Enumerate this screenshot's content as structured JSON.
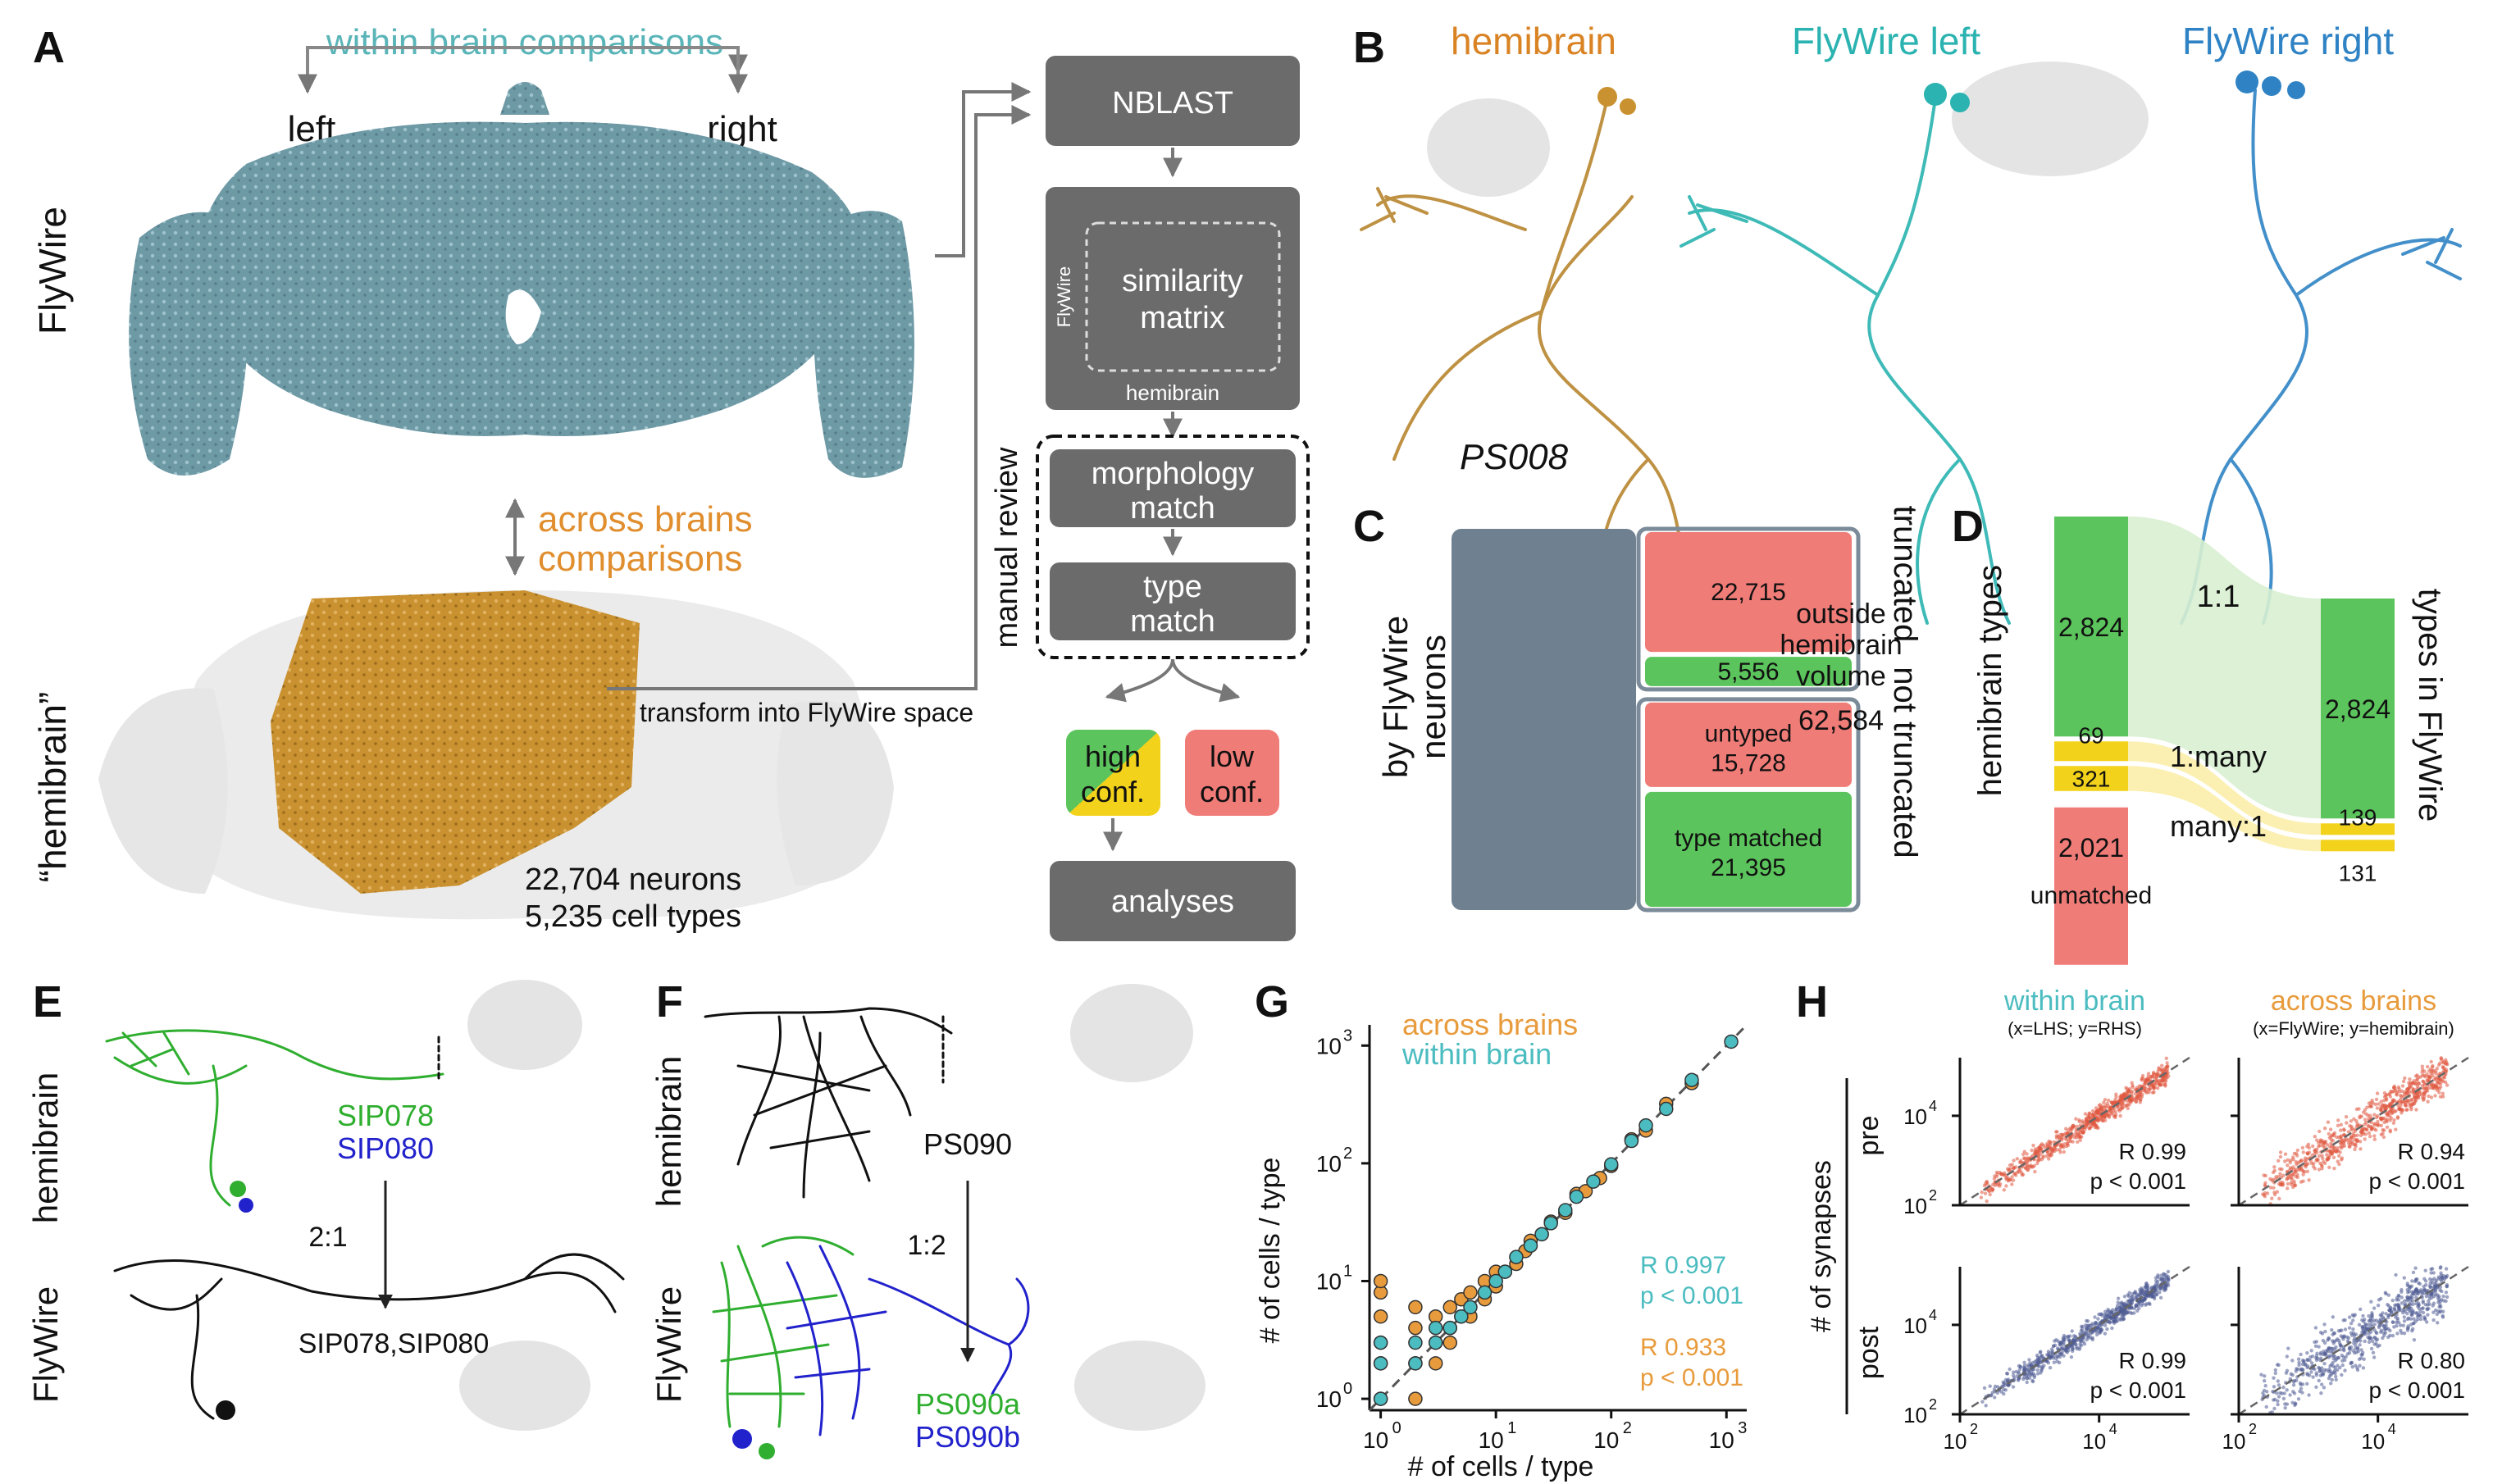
{
  "panels": {
    "A": "A",
    "B": "B",
    "C": "C",
    "D": "D",
    "E": "E",
    "F": "F",
    "G": "G",
    "H": "H"
  },
  "panel_a": {
    "within": "within brain comparisons",
    "left": "left",
    "right": "right",
    "flywire": "FlyWire",
    "across_1": "across brains",
    "across_2": "comparisons",
    "hemibrain": "“hemibrain”",
    "transform": "transform into FlyWire space",
    "neurons": "22,704 neurons",
    "cell_types": "5,235 cell types",
    "nblast": "NBLAST",
    "sim_1": "similarity",
    "sim_2": "matrix",
    "sim_flywire": "FlyWire",
    "sim_hemibrain": "hemibrain",
    "manual_review": "manual review",
    "morph_1": "morphology",
    "morph_2": "match",
    "type_1": "type",
    "type_2": "match",
    "high_1": "high",
    "high_2": "conf.",
    "low_1": "low",
    "low_2": "conf.",
    "analyses": "analyses",
    "colors": {
      "flywire_brain": "#6e9aa6",
      "hemibrain_brain": "#c9912f",
      "flow_box": "#6b6b6b",
      "high": "#5cc45c",
      "high_yellow": "#f2d21b",
      "low": "#f07c78"
    }
  },
  "panel_b": {
    "hemibrain": "hemibrain",
    "flywire_left": "FlyWire left",
    "flywire_right": "FlyWire right",
    "neuron": "PS008",
    "colors": {
      "hemibrain": "#d98324",
      "flywire_left": "#2ab3b0",
      "flywire_right": "#2f83c4"
    }
  },
  "panel_c": {
    "ylabel_1": "by FlyWire",
    "ylabel_2": "neurons",
    "outside_1": "outside",
    "outside_2": "hemibrain",
    "outside_3": "volume",
    "outside_value": "62,584",
    "truncated": "truncated",
    "not_truncated": "not truncated",
    "untyped_label": "untyped",
    "type_matched_label": "type matched",
    "colors": {
      "outside": "#6f8191",
      "red": "#f07c78",
      "green": "#5cc45c",
      "border": "#7b8b99"
    }
  },
  "chart_c": {
    "type": "bar",
    "categories": [
      "outside hemibrain volume",
      "truncated (red)",
      "truncated (green)",
      "untyped",
      "type matched"
    ],
    "values": [
      62584,
      22715,
      5556,
      15728,
      21395
    ],
    "labels": [
      "62,584",
      "22,715",
      "5,556",
      "15,728",
      "21,395"
    ]
  },
  "panel_d": {
    "left_label": "hemibrain types",
    "right_label": "types in FlyWire",
    "one_one": "1:1",
    "one_many": "1:many",
    "many_one": "many:1",
    "unmatched": "unmatched",
    "colors": {
      "green": "#5cc45c",
      "yellow": "#f2d21b",
      "red": "#f07c78",
      "flow_green": "#d8f0d0",
      "flow_yellow": "#fbeea8"
    }
  },
  "chart_d": {
    "type": "bar",
    "categories": [
      "1:1",
      "1:many",
      "many:1",
      "unmatched"
    ],
    "left_values": [
      2824,
      69,
      321,
      2021
    ],
    "right_values": [
      2824,
      139,
      131
    ],
    "left_labels": [
      "2,824",
      "69",
      "321",
      "2,021"
    ],
    "right_labels": [
      "2,824",
      "139",
      "131"
    ]
  },
  "panel_e": {
    "hemibrain": "hemibrain",
    "flywire": "FlyWire",
    "type_a": "SIP078",
    "type_b": "SIP080",
    "ratio": "2:1",
    "merged": "SIP078,SIP080",
    "colors": {
      "green": "#2fae2f",
      "blue": "#2222cc",
      "black": "#111111"
    }
  },
  "panel_f": {
    "hemibrain": "hemibrain",
    "flywire": "FlyWire",
    "type": "PS090",
    "ratio": "1:2",
    "split_a": "PS090a",
    "split_b": "PS090b",
    "colors": {
      "green": "#2fae2f",
      "blue": "#2222cc"
    }
  },
  "panel_g": {
    "legend_across": "across brains",
    "legend_within": "within brain",
    "xlabel": "# of cells / type",
    "ylabel": "# of cells / type",
    "ticks": [
      "10",
      "10",
      "10",
      "10"
    ],
    "exps": [
      "0",
      "1",
      "2",
      "3"
    ],
    "stat_within_r": "R 0.997",
    "stat_within_p": "p < 0.001",
    "stat_across_r": "R 0.933",
    "stat_across_p": "p < 0.001",
    "colors": {
      "across": "#e89b3c",
      "within": "#4bbcc0"
    }
  },
  "chart_g": {
    "type": "scatter",
    "xscale": "log",
    "yscale": "log",
    "xlim": [
      0.8,
      1500
    ],
    "ylim": [
      0.8,
      1500
    ],
    "series": [
      {
        "name": "across brains",
        "x": [
          1,
          1,
          1,
          1,
          1,
          1,
          2,
          2,
          2,
          2,
          3,
          3,
          3,
          4,
          4,
          4,
          5,
          5,
          6,
          6,
          8,
          8,
          10,
          10,
          12,
          15,
          18,
          20,
          25,
          30,
          40,
          50,
          60,
          80,
          100,
          150,
          200,
          300,
          500
        ],
        "y": [
          1,
          2,
          3,
          5,
          8,
          10,
          1,
          2,
          4,
          6,
          2,
          3,
          5,
          3,
          4,
          6,
          5,
          7,
          5,
          8,
          7,
          10,
          9,
          12,
          12,
          14,
          18,
          22,
          25,
          32,
          38,
          55,
          58,
          75,
          95,
          160,
          190,
          320,
          480
        ]
      },
      {
        "name": "within brain",
        "x": [
          1,
          1,
          1,
          2,
          2,
          3,
          3,
          4,
          5,
          6,
          8,
          10,
          12,
          15,
          20,
          25,
          30,
          40,
          50,
          70,
          100,
          150,
          200,
          300,
          500,
          1100
        ],
        "y": [
          1,
          2,
          3,
          2,
          3,
          3,
          4,
          4,
          5,
          6,
          8,
          10,
          12,
          16,
          20,
          25,
          31,
          40,
          52,
          70,
          98,
          155,
          210,
          290,
          510,
          1080
        ]
      }
    ]
  },
  "panel_h": {
    "within": "within brain",
    "within_sub": "(x=LHS; y=RHS)",
    "across": "across brains",
    "across_sub": "(x=FlyWire; y=hemibrain)",
    "ylabel": "# of synapses",
    "pre": "pre",
    "post": "post",
    "ticks": [
      "10",
      "10"
    ],
    "exps": [
      "2",
      "4"
    ],
    "r_pre_within": "R 0.99",
    "r_pre_across": "R 0.94",
    "r_post_within": "R 0.99",
    "r_post_across": "R 0.80",
    "p": "p < 0.001",
    "colors": {
      "pre": "#e0573f",
      "post": "#4f5b93",
      "within": "#4bbcc0",
      "across": "#e89b3c"
    }
  }
}
